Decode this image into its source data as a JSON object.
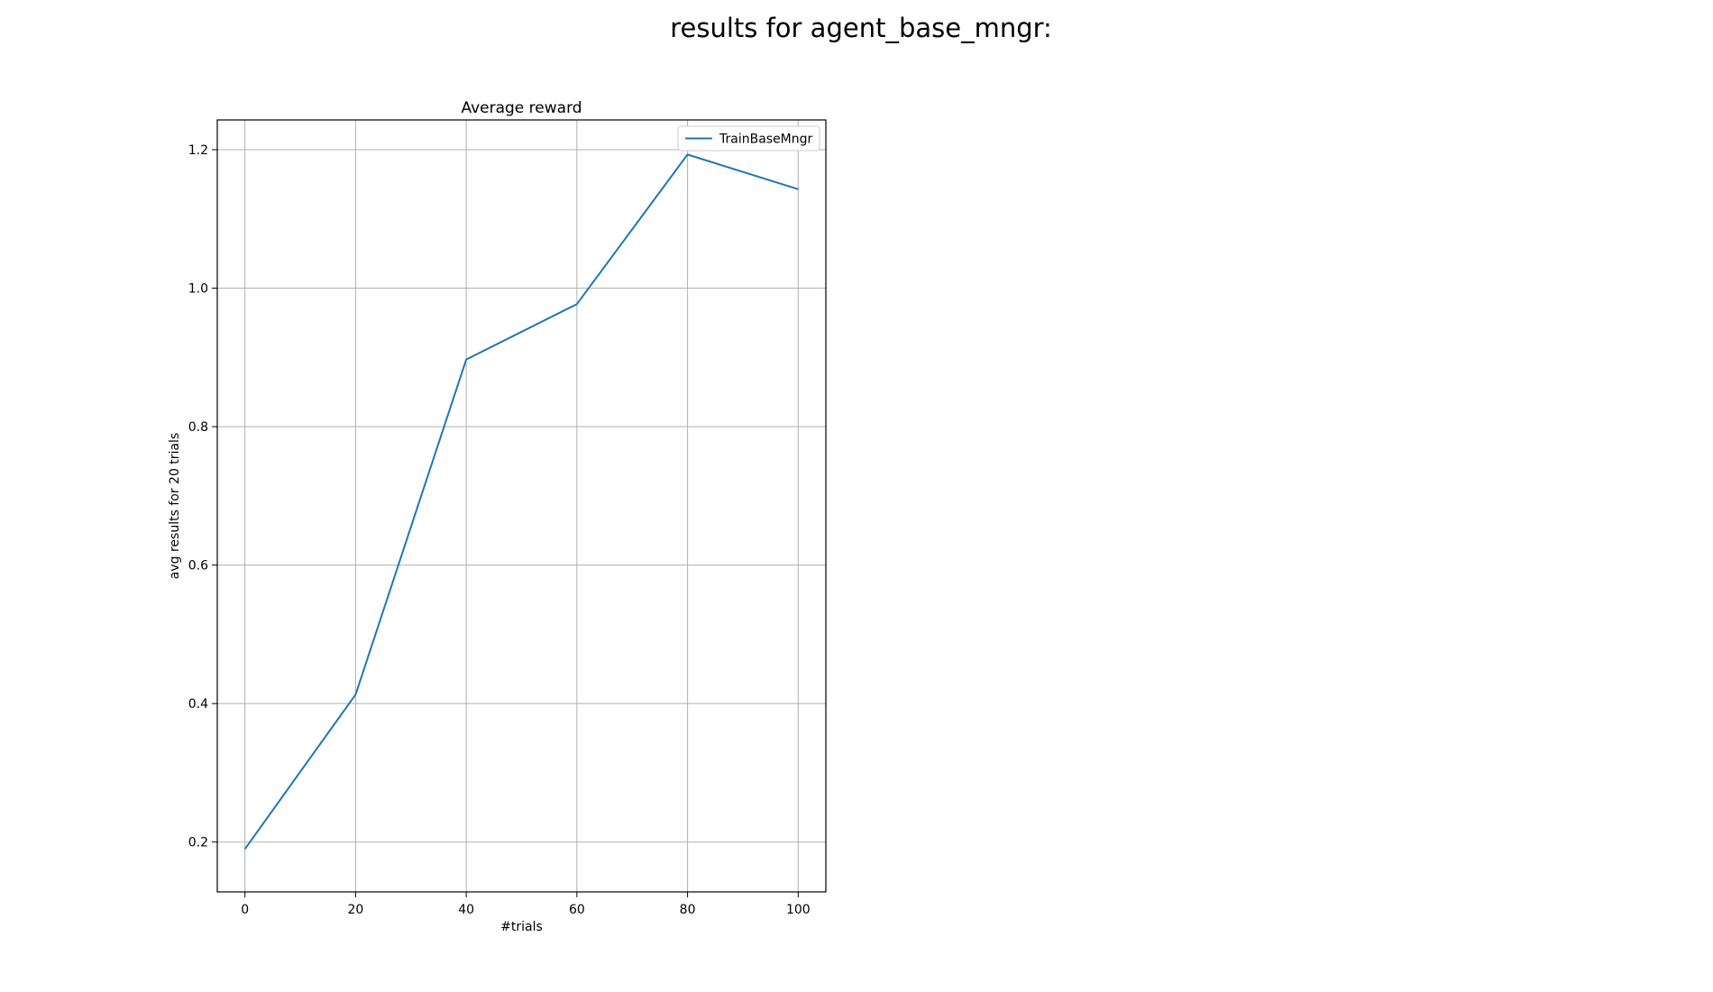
{
  "figure": {
    "title": "results for agent_base_mngr:"
  },
  "chart_data": {
    "type": "line",
    "title": "Average reward",
    "xlabel": "#trials",
    "ylabel": "avg results for 20 trials",
    "x": [
      0,
      20,
      40,
      60,
      80,
      100
    ],
    "series": [
      {
        "name": "TrainBaseMngr",
        "color": "#1f77b4",
        "values": [
          0.19,
          0.413,
          0.897,
          0.977,
          1.193,
          1.143
        ]
      }
    ],
    "xlim": [
      -5,
      105
    ],
    "ylim": [
      0.128,
      1.243
    ],
    "xticks": [
      0,
      20,
      40,
      60,
      80,
      100
    ],
    "xtick_labels": [
      "0",
      "20",
      "40",
      "60",
      "80",
      "100"
    ],
    "yticks": [
      0.2,
      0.4,
      0.6,
      0.8,
      1.0,
      1.2
    ],
    "ytick_labels": [
      "0.2",
      "0.4",
      "0.6",
      "0.8",
      "1.0",
      "1.2"
    ],
    "grid": true,
    "legend": "upper right"
  }
}
